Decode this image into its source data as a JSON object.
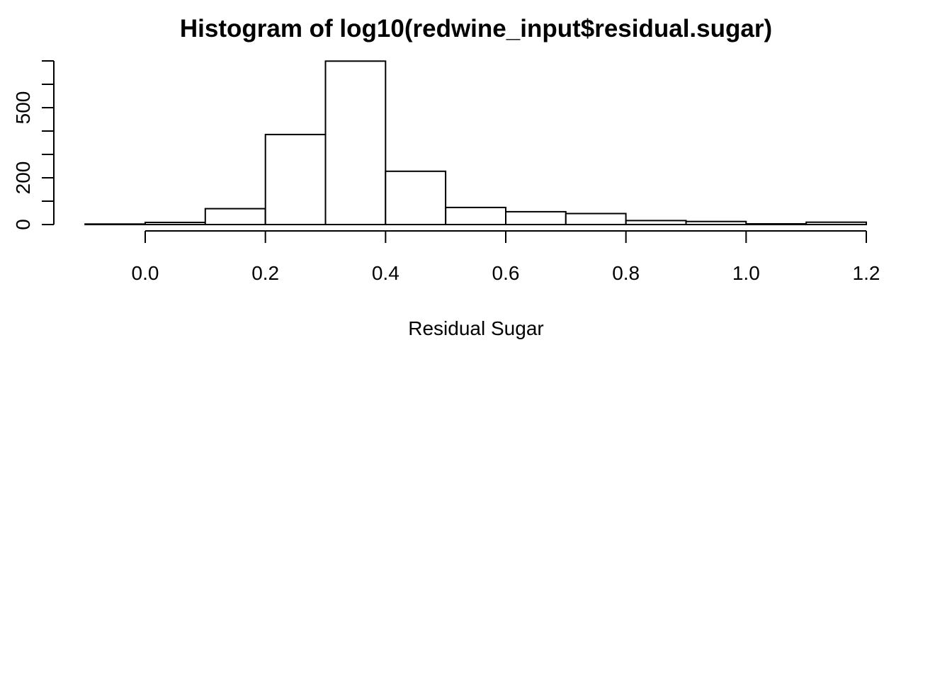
{
  "chart_data": {
    "type": "bar",
    "title": "Histogram of log10(redwine_input$residual.sugar)",
    "xlabel": "Residual Sugar",
    "ylabel": "",
    "bins": [
      {
        "x0": -0.1,
        "x1": 0.0,
        "count": 2
      },
      {
        "x0": 0.0,
        "x1": 0.1,
        "count": 9
      },
      {
        "x0": 0.1,
        "x1": 0.2,
        "count": 68
      },
      {
        "x0": 0.2,
        "x1": 0.3,
        "count": 385
      },
      {
        "x0": 0.3,
        "x1": 0.4,
        "count": 699
      },
      {
        "x0": 0.4,
        "x1": 0.5,
        "count": 228
      },
      {
        "x0": 0.5,
        "x1": 0.6,
        "count": 73
      },
      {
        "x0": 0.6,
        "x1": 0.7,
        "count": 55
      },
      {
        "x0": 0.7,
        "x1": 0.8,
        "count": 47
      },
      {
        "x0": 0.8,
        "x1": 0.9,
        "count": 17
      },
      {
        "x0": 0.9,
        "x1": 1.0,
        "count": 13
      },
      {
        "x0": 1.0,
        "x1": 1.1,
        "count": 3
      },
      {
        "x0": 1.1,
        "x1": 1.2,
        "count": 10
      }
    ],
    "x_ticks": [
      {
        "value": 0.0,
        "label": "0.0"
      },
      {
        "value": 0.2,
        "label": "0.2"
      },
      {
        "value": 0.4,
        "label": "0.4"
      },
      {
        "value": 0.6,
        "label": "0.6"
      },
      {
        "value": 0.8,
        "label": "0.8"
      },
      {
        "value": 1.0,
        "label": "1.0"
      },
      {
        "value": 1.2,
        "label": "1.2"
      }
    ],
    "y_ticks": [
      0,
      100,
      200,
      300,
      400,
      500,
      600,
      700
    ],
    "y_tick_labels": [
      {
        "value": 0,
        "label": "0"
      },
      {
        "value": 200,
        "label": "200"
      },
      {
        "value": 500,
        "label": "500"
      }
    ],
    "xlim": [
      -0.1,
      1.2
    ],
    "ylim": [
      0,
      700
    ],
    "grid": false,
    "bar_fill": "#ffffff",
    "bar_stroke": "#000000"
  }
}
